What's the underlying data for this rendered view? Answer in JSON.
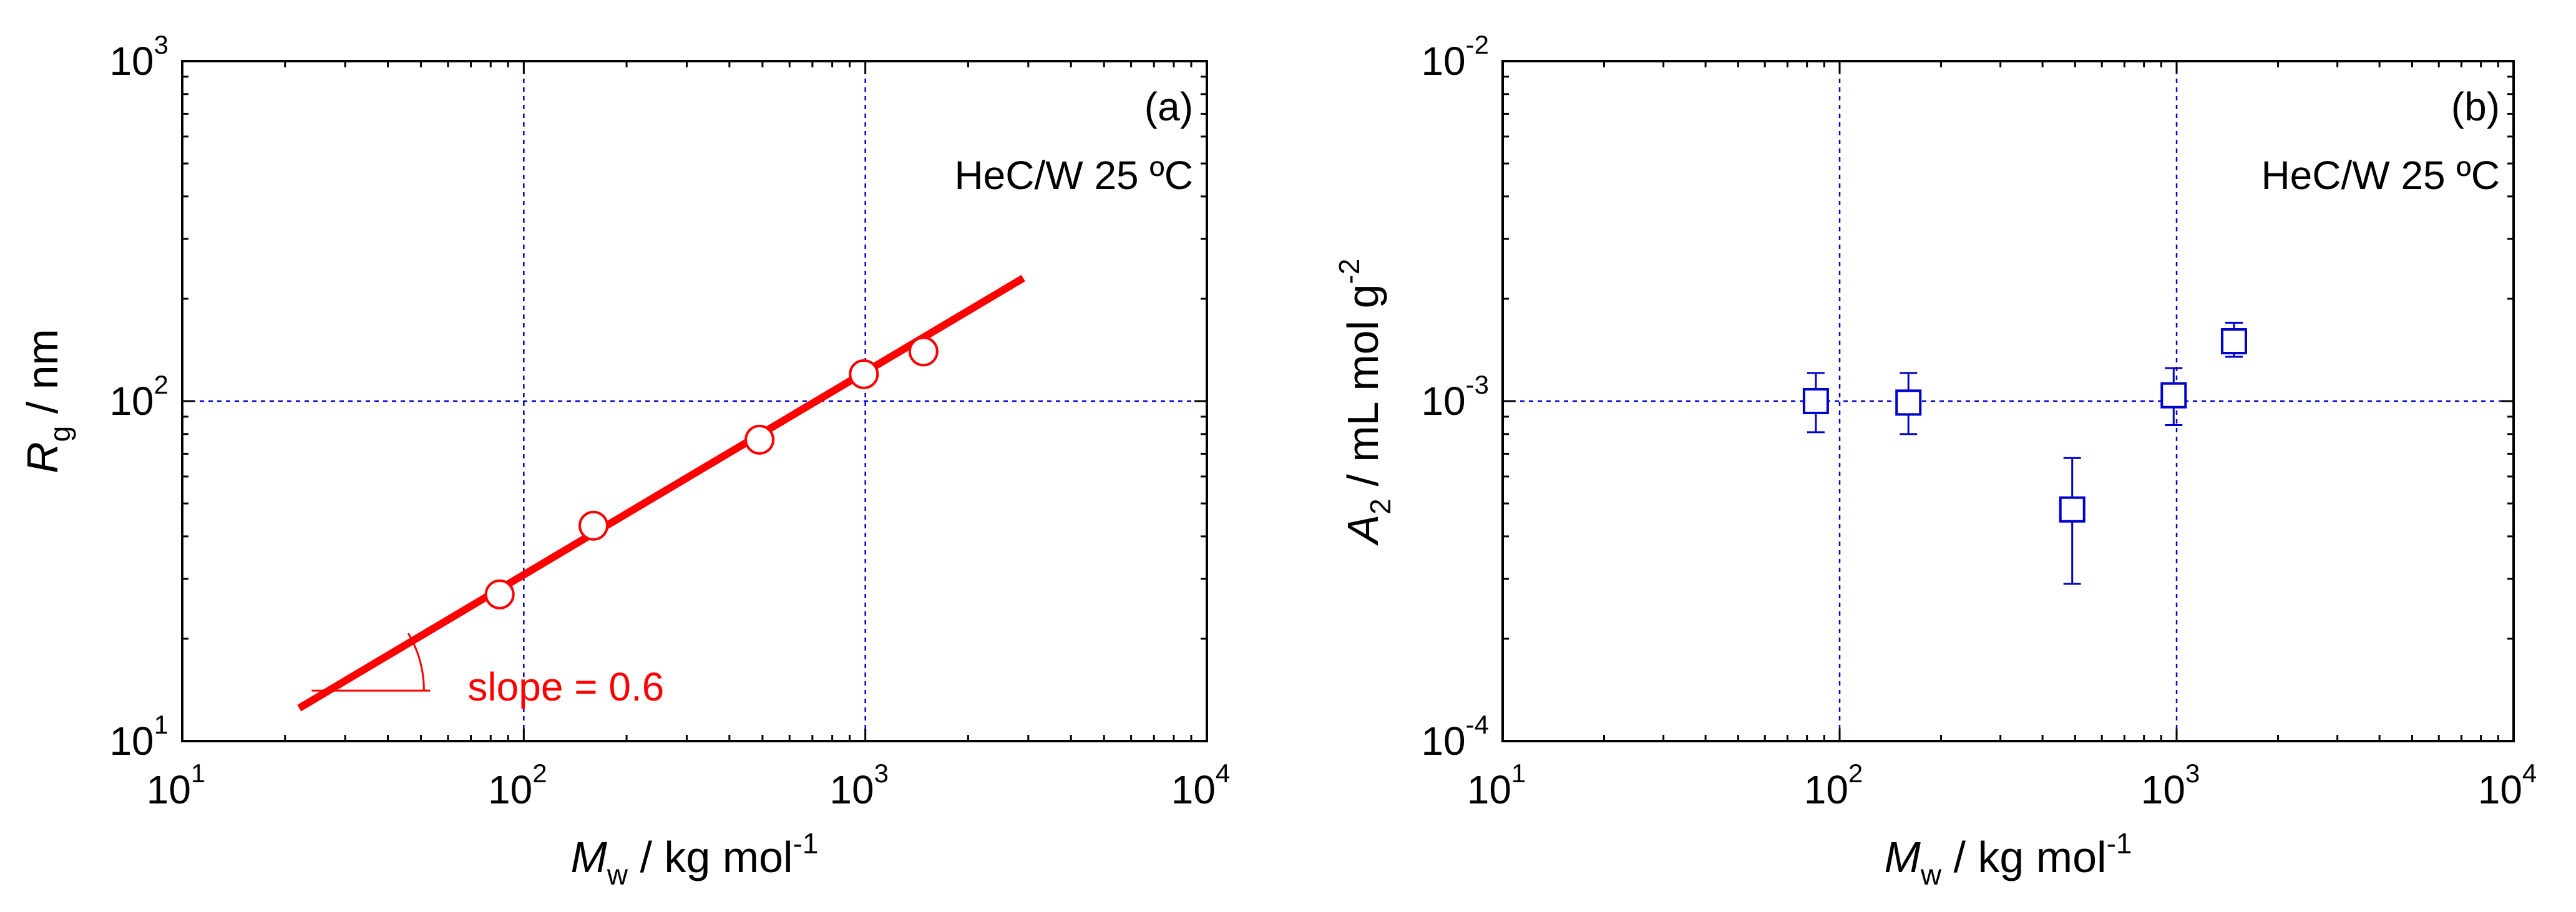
{
  "chart_data": [
    {
      "type": "scatter",
      "panel_label": "(a)",
      "annotation": "HeC/W 25 ºC",
      "xaxis": {
        "label_main": "M",
        "label_sub": "w",
        "label_rest": " / kg mol",
        "label_sup": "-1",
        "scale": "log",
        "xlim": [
          10,
          10000
        ],
        "ticks": [
          {
            "base": "10",
            "exp": "1"
          },
          {
            "base": "10",
            "exp": "2"
          },
          {
            "base": "10",
            "exp": "3"
          },
          {
            "base": "10",
            "exp": "4"
          }
        ]
      },
      "yaxis": {
        "label_main": "R",
        "label_sub": "g",
        "label_rest": " / nm",
        "scale": "log",
        "ylim": [
          10,
          1000
        ],
        "ticks": [
          {
            "base": "10",
            "exp": "1"
          },
          {
            "base": "10",
            "exp": "2"
          },
          {
            "base": "10",
            "exp": "3"
          }
        ]
      },
      "grid": {
        "x": [
          100,
          1000
        ],
        "y": [
          100
        ],
        "style": "dotted",
        "color": "#0000cc"
      },
      "series": [
        {
          "marker": "circle-open",
          "color": "#ff0000",
          "x": [
            85,
            160,
            490,
            990,
            1480
          ],
          "y": [
            27,
            43,
            77,
            120,
            140
          ]
        }
      ],
      "fit_line": {
        "x": [
          22,
          2900
        ],
        "y": [
          12.5,
          230
        ],
        "color": "#ff0000",
        "slope": 0.6
      },
      "slope_annotation": "slope = 0.6"
    },
    {
      "type": "scatter",
      "panel_label": "(b)",
      "annotation": "HeC/W 25 ºC",
      "xaxis": {
        "label_main": "M",
        "label_sub": "w",
        "label_rest": " / kg mol",
        "label_sup": "-1",
        "scale": "log",
        "xlim": [
          10,
          10000
        ],
        "ticks": [
          {
            "base": "10",
            "exp": "1"
          },
          {
            "base": "10",
            "exp": "2"
          },
          {
            "base": "10",
            "exp": "3"
          },
          {
            "base": "10",
            "exp": "4"
          }
        ]
      },
      "yaxis": {
        "label_main": "A",
        "label_sub": "2",
        "label_rest": " / mL mol g",
        "label_sup": "-2",
        "scale": "log",
        "ylim": [
          0.0001,
          0.01
        ],
        "ticks": [
          {
            "base": "10",
            "exp": "-4"
          },
          {
            "base": "10",
            "exp": "-3"
          },
          {
            "base": "10",
            "exp": "-2"
          }
        ]
      },
      "grid": {
        "x": [
          100,
          1000
        ],
        "y": [
          0.001
        ],
        "style": "dotted",
        "color": "#0000cc"
      },
      "series": [
        {
          "marker": "square-open",
          "color": "#0000cc",
          "x": [
            85,
            160,
            490,
            980,
            1480
          ],
          "y": [
            0.001,
            0.00099,
            0.00048,
            0.00104,
            0.0015
          ],
          "err_low": [
            0.00081,
            0.0008,
            0.00029,
            0.00085,
            0.00135
          ],
          "err_high": [
            0.00121,
            0.00121,
            0.00068,
            0.00125,
            0.0017
          ]
        }
      ]
    }
  ]
}
